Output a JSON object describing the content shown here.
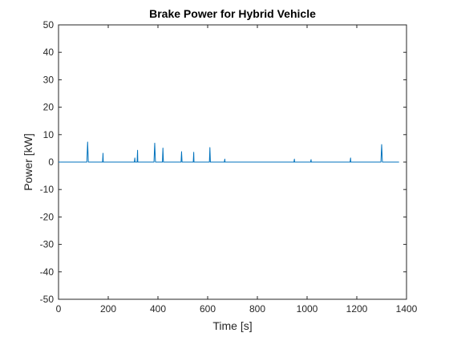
{
  "chart_data": {
    "type": "line",
    "title": "Brake Power for Hybrid Vehicle",
    "xlabel": "Time [s]",
    "ylabel": "Power [kW]",
    "xlim": [
      0,
      1400
    ],
    "ylim": [
      -50,
      50
    ],
    "xticks": [
      0,
      200,
      400,
      600,
      800,
      1000,
      1200,
      1400
    ],
    "yticks": [
      -50,
      -40,
      -30,
      -20,
      -10,
      0,
      10,
      20,
      30,
      40,
      50
    ],
    "grid": false,
    "legend": "none",
    "series": [
      {
        "color": "#0072BD",
        "x": [
          0,
          114,
          117,
          120,
          121,
          177,
          179,
          180,
          181,
          305,
          307,
          308,
          309,
          316,
          318,
          319,
          320,
          384,
          387,
          390,
          391,
          418,
          420,
          422,
          423,
          493,
          495,
          497,
          498,
          542,
          544,
          545,
          546,
          607,
          609,
          611,
          612,
          667,
          669,
          670,
          671,
          947,
          949,
          950,
          951,
          1014,
          1016,
          1017,
          1018,
          1173,
          1175,
          1176,
          1177,
          1297,
          1300,
          1303,
          1304,
          1370
        ],
        "y": [
          0,
          0,
          7.3,
          0,
          0,
          0,
          3.2,
          0,
          0,
          0,
          1.5,
          0,
          0,
          0,
          4.3,
          0,
          0,
          0,
          6.9,
          0,
          0,
          0,
          5.1,
          0,
          0,
          0,
          3.8,
          0,
          0,
          0,
          3.6,
          0,
          0,
          0,
          5.3,
          0,
          0,
          0,
          1.1,
          0,
          0,
          0,
          1.1,
          0,
          0,
          0,
          0.9,
          0,
          0,
          0,
          1.5,
          0,
          0,
          0,
          6.4,
          0,
          0,
          0
        ]
      }
    ]
  }
}
